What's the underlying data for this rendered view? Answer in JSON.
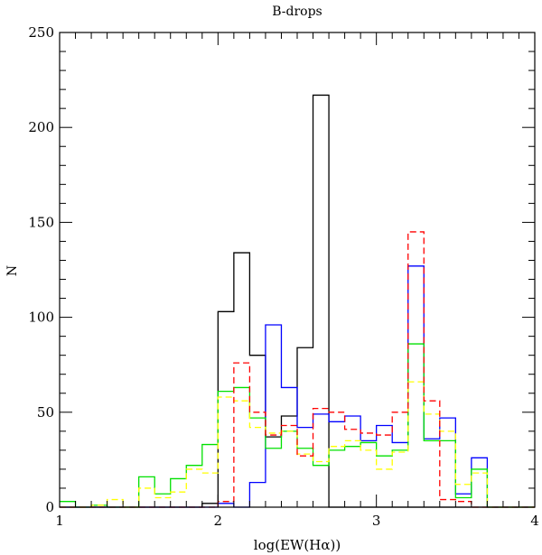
{
  "chart_data": {
    "type": "histogram",
    "title": "B-drops",
    "xlabel": "log(EW(Hα))",
    "ylabel": "N",
    "xlim": [
      1,
      4
    ],
    "ylim": [
      0,
      250
    ],
    "xticks": [
      "1",
      "2",
      "3",
      "4"
    ],
    "yticks": [
      "0",
      "50",
      "100",
      "150",
      "200",
      "250"
    ],
    "grid": false,
    "bin_edges": [
      1.0,
      1.1,
      1.2,
      1.3,
      1.4,
      1.5,
      1.6,
      1.7,
      1.8,
      1.9,
      2.0,
      2.1,
      2.2,
      2.3,
      2.4,
      2.5,
      2.6,
      2.7,
      2.8,
      2.9,
      3.0,
      3.1,
      3.2,
      3.3,
      3.4,
      3.5,
      3.6,
      3.7,
      3.8,
      3.9,
      4.0
    ],
    "series": [
      {
        "color": "#000000",
        "dash": false,
        "values": [
          0,
          0,
          0,
          0,
          0,
          0,
          0,
          0,
          0,
          2,
          103,
          134,
          80,
          37,
          48,
          84,
          217,
          0,
          0,
          0,
          0,
          0,
          0,
          0,
          0,
          0,
          0,
          0,
          0,
          0
        ]
      },
      {
        "color": "#0000ff",
        "dash": false,
        "values": [
          0,
          0,
          0,
          0,
          0,
          0,
          0,
          0,
          0,
          0,
          2,
          0,
          13,
          96,
          63,
          42,
          49,
          45,
          48,
          35,
          43,
          34,
          127,
          36,
          47,
          7,
          26,
          0,
          0,
          0
        ]
      },
      {
        "color": "#00e000",
        "dash": false,
        "values": [
          3,
          0,
          1,
          0,
          0,
          16,
          7,
          15,
          22,
          33,
          61,
          63,
          47,
          31,
          40,
          31,
          22,
          30,
          32,
          34,
          27,
          30,
          86,
          35,
          35,
          5,
          20,
          0,
          0,
          0
        ]
      },
      {
        "color": "#ffff00",
        "dash": true,
        "values": [
          0,
          0,
          1,
          4,
          0,
          10,
          5,
          8,
          20,
          18,
          58,
          56,
          42,
          39,
          40,
          28,
          24,
          32,
          35,
          30,
          20,
          29,
          66,
          49,
          40,
          12,
          18,
          0,
          0,
          0
        ]
      },
      {
        "color": "#ff0000",
        "dash": true,
        "values": [
          0,
          0,
          0,
          0,
          0,
          0,
          0,
          0,
          0,
          0,
          3,
          76,
          50,
          38,
          43,
          27,
          52,
          50,
          41,
          39,
          38,
          50,
          145,
          56,
          4,
          3,
          0,
          0,
          0,
          0
        ]
      }
    ]
  }
}
